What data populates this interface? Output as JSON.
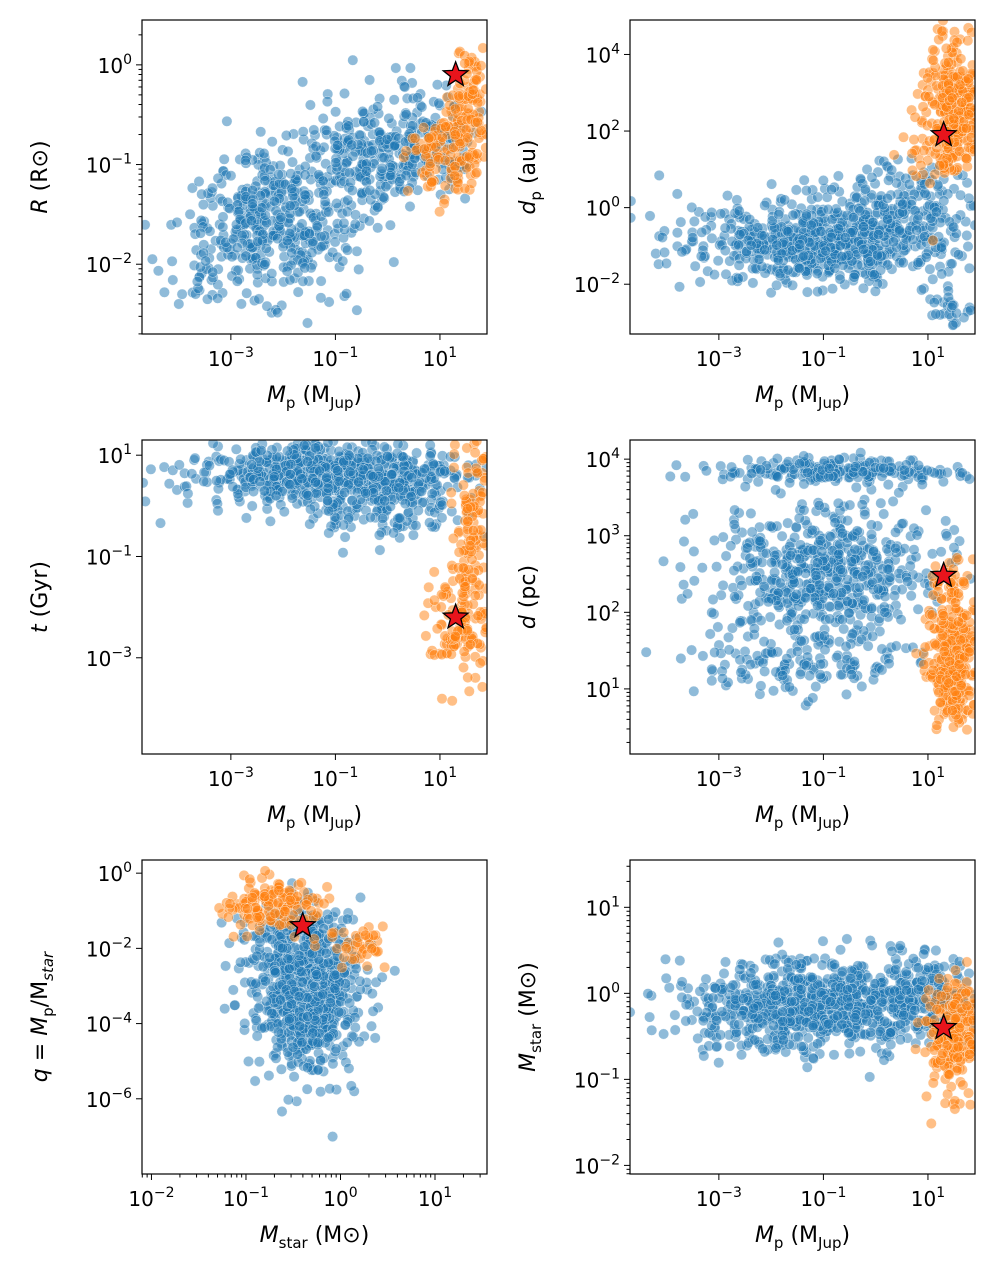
{
  "figure": {
    "colors": {
      "population_a": "#1f77b4",
      "population_b": "#ff7f0e",
      "highlight": "#e8141c"
    }
  },
  "chart_data": [
    {
      "id": "p1",
      "type": "scatter",
      "xlabel": {
        "sym": "M",
        "sub": "p",
        "unit_open": " (M",
        "unit_sub": "Jup",
        "unit_close": ")"
      },
      "ylabel": {
        "sym": "R",
        "sub": "",
        "unit_open": " (R",
        "unit_sub": "⊙",
        "unit_close": ")"
      },
      "xlim": [
        -4.7,
        1.9
      ],
      "ylim": [
        -2.7,
        0.45
      ],
      "xticks": [
        -3,
        -1,
        1
      ],
      "yticks": [
        -2,
        -1,
        0
      ],
      "highlight": {
        "x": 1.3,
        "y": -0.1
      },
      "series": [
        {
          "name": "blue",
          "clusters": [
            {
              "cx": -2.2,
              "cy": -1.6,
              "sx": 0.8,
              "sy": 0.35,
              "n": 420
            },
            {
              "cx": -0.3,
              "cy": -0.9,
              "sx": 0.9,
              "sy": 0.3,
              "n": 260
            },
            {
              "cx": 0.6,
              "cy": -0.8,
              "sx": 0.6,
              "sy": 0.25,
              "n": 120
            },
            {
              "cx": -3.6,
              "cy": -2.2,
              "sx": 0.4,
              "sy": 0.15,
              "n": 20
            }
          ]
        },
        {
          "name": "orange",
          "clusters": [
            {
              "cx": 1.2,
              "cy": -0.9,
              "sx": 0.4,
              "sy": 0.22,
              "n": 140
            },
            {
              "cx": 1.6,
              "cy": -0.3,
              "sx": 0.2,
              "sy": 0.3,
              "n": 80
            }
          ]
        }
      ]
    },
    {
      "id": "p2",
      "type": "scatter",
      "xlabel": {
        "sym": "M",
        "sub": "p",
        "unit_open": " (M",
        "unit_sub": "Jup",
        "unit_close": ")"
      },
      "ylabel": {
        "sym": "d",
        "sub": "p",
        "unit_open": " (au)",
        "unit_sub": "",
        "unit_close": ""
      },
      "xlim": [
        -4.7,
        1.9
      ],
      "ylim": [
        -3.3,
        4.9
      ],
      "xticks": [
        -3,
        -1,
        1
      ],
      "yticks": [
        -2,
        0,
        2,
        4
      ],
      "highlight": {
        "x": 1.3,
        "y": 1.9
      },
      "series": [
        {
          "name": "blue",
          "clusters": [
            {
              "cx": -1.0,
              "cy": -0.9,
              "sx": 1.3,
              "sy": 0.55,
              "n": 700
            },
            {
              "cx": 0.5,
              "cy": 0.2,
              "sx": 0.9,
              "sy": 0.5,
              "n": 150
            },
            {
              "cx": 1.5,
              "cy": -2.6,
              "sx": 0.3,
              "sy": 0.3,
              "n": 30
            }
          ]
        },
        {
          "name": "orange",
          "clusters": [
            {
              "cx": 1.5,
              "cy": 2.8,
              "sx": 0.3,
              "sy": 0.9,
              "n": 260
            },
            {
              "cx": 1.2,
              "cy": 1.5,
              "sx": 0.4,
              "sy": 0.5,
              "n": 60
            }
          ]
        }
      ]
    },
    {
      "id": "p3",
      "type": "scatter",
      "xlabel": {
        "sym": "M",
        "sub": "p",
        "unit_open": " (M",
        "unit_sub": "Jup",
        "unit_close": ")"
      },
      "ylabel": {
        "sym": "t",
        "sub": "",
        "unit_open": " (Gyr)",
        "unit_sub": "",
        "unit_close": ""
      },
      "xlim": [
        -4.7,
        1.9
      ],
      "ylim": [
        -4.9,
        1.3
      ],
      "xticks": [
        -3,
        -1,
        1
      ],
      "yticks": [
        -3,
        -1,
        1
      ],
      "highlight": {
        "x": 1.3,
        "y": -2.2
      },
      "series": [
        {
          "name": "blue",
          "clusters": [
            {
              "cx": -1.0,
              "cy": 0.6,
              "sx": 1.3,
              "sy": 0.3,
              "n": 700
            },
            {
              "cx": -0.3,
              "cy": -0.1,
              "sx": 0.9,
              "sy": 0.3,
              "n": 120
            }
          ]
        },
        {
          "name": "orange",
          "clusters": [
            {
              "cx": 1.4,
              "cy": -2.3,
              "sx": 0.3,
              "sy": 0.6,
              "n": 130
            },
            {
              "cx": 1.6,
              "cy": -0.3,
              "sx": 0.2,
              "sy": 0.8,
              "n": 110
            }
          ]
        }
      ]
    },
    {
      "id": "p4",
      "type": "scatter",
      "xlabel": {
        "sym": "M",
        "sub": "p",
        "unit_open": " (M",
        "unit_sub": "Jup",
        "unit_close": ")"
      },
      "ylabel": {
        "sym": "d",
        "sub": "",
        "unit_open": " (pc)",
        "unit_sub": "",
        "unit_close": ""
      },
      "xlim": [
        -4.7,
        1.9
      ],
      "ylim": [
        0.15,
        4.25
      ],
      "xticks": [
        -3,
        -1,
        1
      ],
      "yticks": [
        1,
        2,
        3,
        4
      ],
      "highlight": {
        "x": 1.3,
        "y": 2.48
      },
      "series": [
        {
          "name": "blue",
          "clusters": [
            {
              "cx": -1.0,
              "cy": 2.5,
              "sx": 1.1,
              "sy": 0.45,
              "n": 600
            },
            {
              "cx": -0.8,
              "cy": 3.85,
              "sx": 1.3,
              "sy": 0.08,
              "n": 220
            },
            {
              "cx": -1.5,
              "cy": 1.3,
              "sx": 1.0,
              "sy": 0.2,
              "n": 120
            }
          ]
        },
        {
          "name": "orange",
          "clusters": [
            {
              "cx": 1.5,
              "cy": 1.3,
              "sx": 0.25,
              "sy": 0.4,
              "n": 260
            },
            {
              "cx": 1.4,
              "cy": 2.3,
              "sx": 0.25,
              "sy": 0.3,
              "n": 60
            }
          ]
        }
      ]
    },
    {
      "id": "p5",
      "type": "scatter",
      "xlabel": {
        "sym": "M",
        "sub": "star",
        "unit_open": " (M",
        "unit_sub": "⊙",
        "unit_close": ")"
      },
      "ylabel": {
        "sym": "q = M",
        "sub": "p",
        "unit_open": "/M",
        "unit_sub": "star",
        "unit_close": ""
      },
      "xlim": [
        -2.1,
        1.55
      ],
      "ylim": [
        -8.0,
        0.35
      ],
      "xticks": [
        -2,
        -1,
        0,
        1
      ],
      "yticks": [
        -6,
        -4,
        -2,
        0
      ],
      "highlight": {
        "x": -0.4,
        "y": -1.4
      },
      "series": [
        {
          "name": "blue",
          "clusters": [
            {
              "cx": -0.35,
              "cy": -3.2,
              "sx": 0.28,
              "sy": 1.0,
              "n": 700
            },
            {
              "cx": -0.5,
              "cy": -1.8,
              "sx": 0.3,
              "sy": 0.5,
              "n": 120
            }
          ]
        },
        {
          "name": "orange",
          "clusters": [
            {
              "cx": -0.7,
              "cy": -0.8,
              "sx": 0.3,
              "sy": 0.35,
              "n": 140
            },
            {
              "cx": 0.2,
              "cy": -1.9,
              "sx": 0.2,
              "sy": 0.3,
              "n": 40
            }
          ]
        }
      ]
    },
    {
      "id": "p6",
      "type": "scatter",
      "xlabel": {
        "sym": "M",
        "sub": "p",
        "unit_open": " (M",
        "unit_sub": "Jup",
        "unit_close": ")"
      },
      "ylabel": {
        "sym": "M",
        "sub": "star",
        "unit_open": " (M",
        "unit_sub": "⊙",
        "unit_close": ")"
      },
      "xlim": [
        -4.7,
        1.9
      ],
      "ylim": [
        -2.1,
        1.55
      ],
      "xticks": [
        -3,
        -1,
        1
      ],
      "yticks": [
        -2,
        -1,
        0,
        1
      ],
      "highlight": {
        "x": 1.3,
        "y": -0.4
      },
      "series": [
        {
          "name": "blue",
          "clusters": [
            {
              "cx": -1.0,
              "cy": -0.15,
              "sx": 1.3,
              "sy": 0.25,
              "n": 900
            },
            {
              "cx": 0.8,
              "cy": 0.1,
              "sx": 0.6,
              "sy": 0.25,
              "n": 100
            }
          ]
        },
        {
          "name": "orange",
          "clusters": [
            {
              "cx": 1.5,
              "cy": -0.5,
              "sx": 0.25,
              "sy": 0.35,
              "n": 220
            }
          ]
        }
      ]
    }
  ]
}
